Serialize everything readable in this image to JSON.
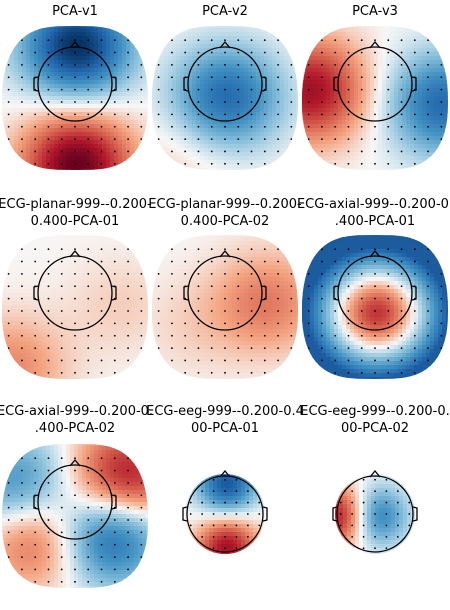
{
  "chart_data": {
    "type": "heatmap",
    "colormap": "RdBu_r",
    "panels": [
      {
        "title_lines": [
          "PCA-v1"
        ],
        "sensors": "planar",
        "pattern": "fb",
        "amp": 1.0,
        "blobs": [
          {
            "x": 0.0,
            "y": 0.85,
            "a": -1.0
          },
          {
            "x": 0.0,
            "y": -0.9,
            "a": 1.0
          }
        ]
      },
      {
        "title_lines": [
          "PCA-v2"
        ],
        "sensors": "planar",
        "pattern": "center",
        "amp": 0.8,
        "blobs": [
          {
            "x": 0.0,
            "y": 0.1,
            "a": -0.9
          },
          {
            "x": -0.6,
            "y": -0.8,
            "a": 0.15
          }
        ]
      },
      {
        "title_lines": [
          "PCA-v3"
        ],
        "sensors": "planar",
        "pattern": "lr",
        "amp": 0.9,
        "blobs": [
          {
            "x": -0.9,
            "y": 0.2,
            "a": 0.9
          },
          {
            "x": 0.9,
            "y": 0.0,
            "a": -0.8
          }
        ]
      },
      {
        "title_lines": [
          "ECG-planar-999--0.200-",
          "0.400-PCA-01"
        ],
        "sensors": "planar",
        "pattern": "pos",
        "amp": 0.5,
        "blobs": [
          {
            "x": -0.9,
            "y": -0.8,
            "a": 0.7
          },
          {
            "x": 0.6,
            "y": 0.1,
            "a": 0.25
          }
        ]
      },
      {
        "title_lines": [
          "ECG-planar-999--0.200-",
          "0.400-PCA-02"
        ],
        "sensors": "planar",
        "pattern": "pos",
        "amp": 0.5,
        "blobs": [
          {
            "x": 0.55,
            "y": 0.15,
            "a": 0.8
          },
          {
            "x": -0.5,
            "y": -0.2,
            "a": 0.2
          }
        ]
      },
      {
        "title_lines": [
          "ECG-axial-999--0.200-0.",
          ".400-PCA-01"
        ],
        "sensors": "axial",
        "pattern": "ring",
        "amp": 1.0,
        "blobs": [
          {
            "x": 0.0,
            "y": -0.1,
            "a": 0.55
          }
        ]
      },
      {
        "title_lines": [
          "ECG-axial-999--0.200-0.",
          ".400-PCA-02"
        ],
        "sensors": "axial",
        "pattern": "dipole",
        "amp": 1.0,
        "blobs": [
          {
            "x": -0.8,
            "y": 0.5,
            "a": -0.6
          },
          {
            "x": 0.65,
            "y": 0.6,
            "a": 0.9
          },
          {
            "x": -0.55,
            "y": -0.2,
            "a": 0.6
          },
          {
            "x": 0.45,
            "y": -0.15,
            "a": -0.9
          }
        ]
      },
      {
        "title_lines": [
          "ECG-eeg-999--0.200-0.4",
          "00-PCA-01"
        ],
        "sensors": "eeg",
        "pattern": "fb",
        "amp": 0.9,
        "blobs": [
          {
            "x": 0.0,
            "y": 0.8,
            "a": -0.9
          },
          {
            "x": 0.0,
            "y": -0.8,
            "a": 0.9
          }
        ]
      },
      {
        "title_lines": [
          "ECG-eeg-999--0.200-0.",
          "00-PCA-02"
        ],
        "sensors": "eeg",
        "pattern": "center",
        "amp": 0.9,
        "blobs": [
          {
            "x": 0.0,
            "y": 0.0,
            "a": -0.7
          },
          {
            "x": -0.95,
            "y": 0.0,
            "a": 0.9
          }
        ]
      }
    ]
  }
}
